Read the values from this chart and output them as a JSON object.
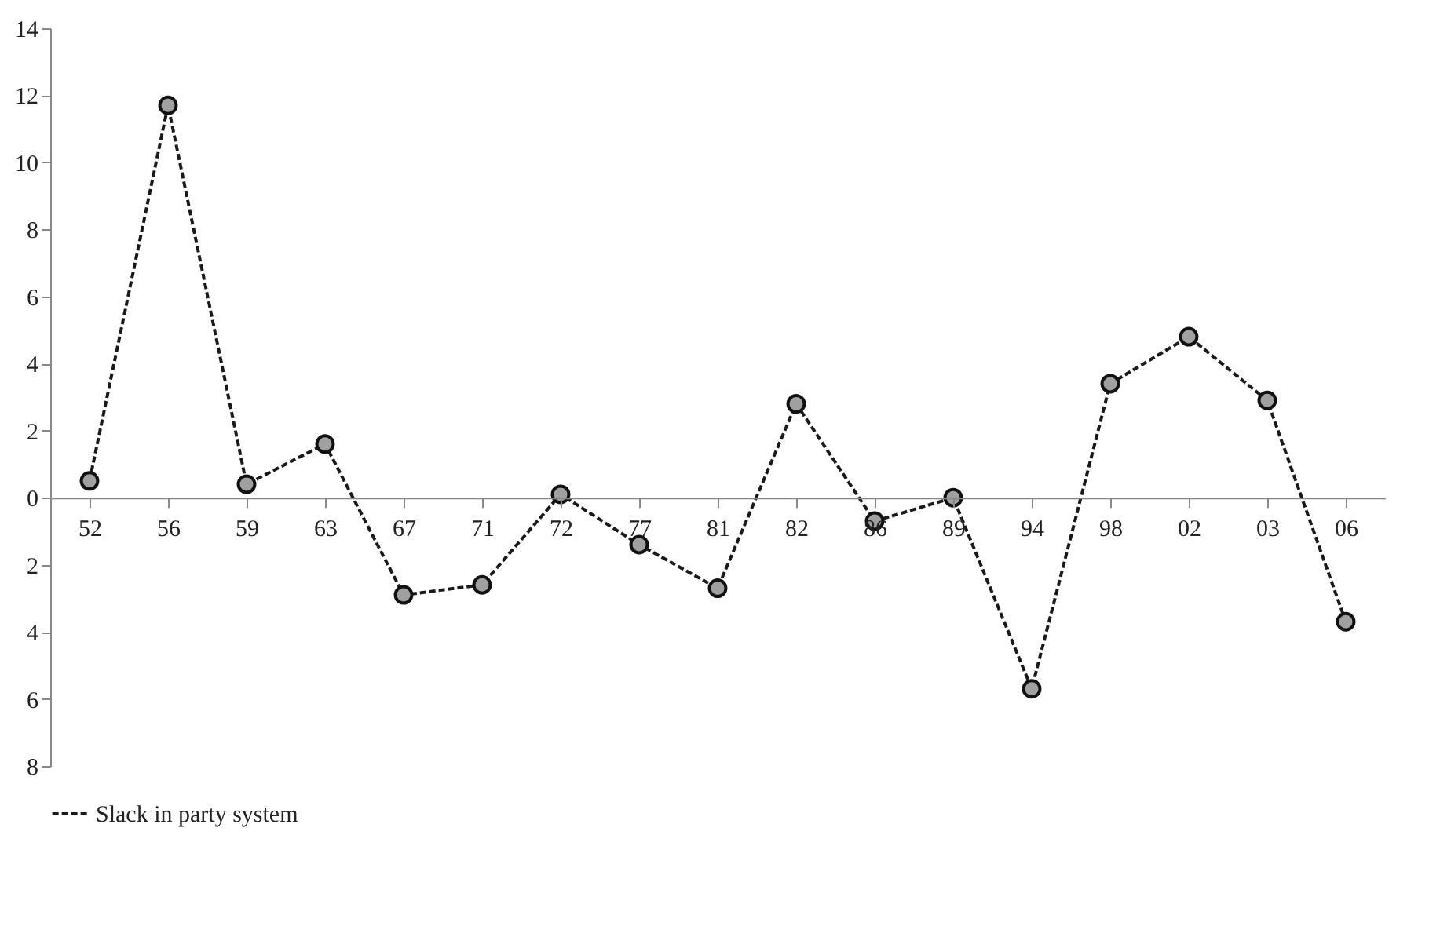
{
  "chart_data": {
    "type": "line",
    "categories": [
      "52",
      "56",
      "59",
      "63",
      "67",
      "71",
      "72",
      "77",
      "81",
      "82",
      "86",
      "89",
      "94",
      "98",
      "02",
      "03",
      "06"
    ],
    "series": [
      {
        "name": "Slack in party system",
        "color": "#1a1a1a",
        "values": [
          0.5,
          11.7,
          0.4,
          1.6,
          -2.9,
          -2.6,
          0.1,
          -1.4,
          -2.7,
          2.8,
          -0.7,
          0,
          -5.7,
          3.4,
          4.8,
          2.9,
          -3.7
        ]
      }
    ],
    "ylim": [
      -8,
      14
    ],
    "yticks": [
      {
        "value": -8,
        "label": "8"
      },
      {
        "value": -6,
        "label": "6"
      },
      {
        "value": -4,
        "label": "4"
      },
      {
        "value": -2,
        "label": "2"
      },
      0,
      2,
      4,
      6,
      8,
      10,
      12,
      14
    ],
    "grid": false,
    "legend": "bottom",
    "marker": "circle",
    "line_style": "dashed"
  }
}
